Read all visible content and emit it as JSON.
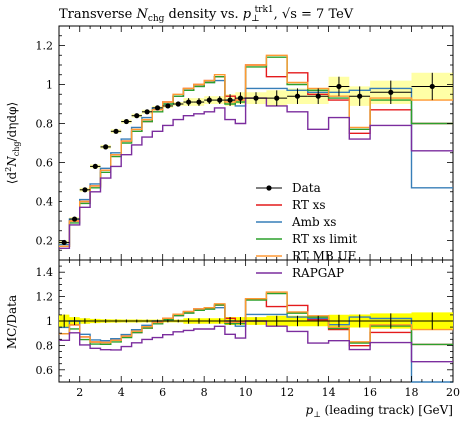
{
  "chart_data": {
    "type": "line",
    "title": "Transverse N_chg density vs. p⊥^trk1, √s = 7 TeV",
    "title_parts": {
      "lead": "Transverse ",
      "var": "N",
      "var_sub": "chg",
      "mid": " density vs. ",
      "pvar": "p",
      "psub": "⊥",
      "psup": "trk1",
      "tail": ", √s = 7 TeV"
    },
    "ylabel_main": "⟨d²N_chg/dηdφ⟩",
    "ylabel_main_parts": {
      "a": "⟨d",
      "a_sup": "2",
      "b": "N",
      "b_sub": "chg",
      "c": "/dηdφ⟩"
    },
    "ylabel_ratio": "MC/Data",
    "xlabel": "p⊥ (leading track) [GeV]",
    "xlabel_parts": {
      "p": "p",
      "sub": "⊥",
      "rest": " (leading track) [GeV]"
    },
    "xlim": [
      1,
      20
    ],
    "ylim_main": [
      0.1,
      1.3
    ],
    "ylim_ratio": [
      0.5,
      1.5
    ],
    "xticks": [
      2,
      4,
      6,
      8,
      10,
      12,
      14,
      16,
      18,
      20
    ],
    "yticks_main": [
      0.2,
      0.4,
      0.6,
      0.8,
      1,
      1.2
    ],
    "yticks_ratio": [
      0.6,
      0.8,
      1,
      1.2,
      1.4
    ],
    "legend_position": "center-right",
    "bin_edges": [
      1.0,
      1.5,
      2.0,
      2.5,
      3.0,
      3.5,
      4.0,
      4.5,
      5.0,
      5.5,
      6.0,
      6.5,
      7.0,
      7.5,
      8.0,
      8.5,
      9.0,
      9.5,
      10.0,
      11.0,
      12.0,
      13.0,
      14.0,
      15.0,
      16.0,
      18.0,
      20.0
    ],
    "data": {
      "name": "Data",
      "color": "#000000",
      "values": [
        0.19,
        0.31,
        0.46,
        0.58,
        0.68,
        0.76,
        0.81,
        0.84,
        0.86,
        0.88,
        0.89,
        0.9,
        0.91,
        0.91,
        0.92,
        0.92,
        0.92,
        0.93,
        0.93,
        0.93,
        0.94,
        0.94,
        0.99,
        0.94,
        0.96,
        0.99
      ],
      "errors": [
        0.01,
        0.01,
        0.01,
        0.01,
        0.01,
        0.01,
        0.01,
        0.01,
        0.01,
        0.01,
        0.01,
        0.01,
        0.02,
        0.02,
        0.02,
        0.02,
        0.03,
        0.03,
        0.03,
        0.04,
        0.04,
        0.04,
        0.05,
        0.05,
        0.06,
        0.07
      ]
    },
    "series": [
      {
        "name": "RT xs",
        "color": "#e41a1c",
        "values": [
          0.17,
          0.3,
          0.4,
          0.48,
          0.56,
          0.64,
          0.71,
          0.76,
          0.81,
          0.87,
          0.91,
          0.94,
          0.98,
          1.0,
          1.02,
          1.04,
          0.94,
          0.92,
          1.1,
          1.04,
          1.06,
          0.95,
          0.92,
          0.75,
          0.87,
          0.8
        ]
      },
      {
        "name": "Amb xs",
        "color": "#377eb8",
        "values": [
          0.18,
          0.31,
          0.41,
          0.49,
          0.57,
          0.65,
          0.72,
          0.78,
          0.83,
          0.88,
          0.9,
          0.94,
          0.97,
          0.99,
          1.01,
          1.02,
          0.92,
          0.89,
          0.98,
          0.98,
          0.97,
          0.96,
          0.96,
          0.97,
          0.98,
          0.47
        ]
      },
      {
        "name": "RT xs limit",
        "color": "#2ca02c",
        "values": [
          0.17,
          0.29,
          0.39,
          0.47,
          0.55,
          0.63,
          0.7,
          0.76,
          0.81,
          0.86,
          0.9,
          0.94,
          0.97,
          0.99,
          1.01,
          1.04,
          0.9,
          0.91,
          1.09,
          1.14,
          1.0,
          0.97,
          0.93,
          0.77,
          0.92,
          0.8
        ]
      },
      {
        "name": "RT MB UE",
        "color": "#ff9933",
        "values": [
          0.17,
          0.3,
          0.4,
          0.48,
          0.56,
          0.64,
          0.71,
          0.77,
          0.82,
          0.87,
          0.91,
          0.95,
          0.98,
          1.0,
          1.02,
          1.05,
          0.91,
          0.92,
          1.1,
          1.15,
          1.01,
          0.98,
          0.94,
          0.78,
          0.93,
          0.92
        ]
      },
      {
        "name": "RAPGAP",
        "color": "#7b2d9e",
        "values": [
          0.16,
          0.28,
          0.37,
          0.45,
          0.52,
          0.58,
          0.64,
          0.69,
          0.73,
          0.76,
          0.79,
          0.82,
          0.84,
          0.85,
          0.86,
          0.88,
          0.82,
          0.8,
          0.93,
          0.89,
          0.86,
          0.77,
          0.83,
          0.72,
          0.79,
          0.66
        ]
      }
    ],
    "uncertainty_band_color": "#ffff00"
  }
}
